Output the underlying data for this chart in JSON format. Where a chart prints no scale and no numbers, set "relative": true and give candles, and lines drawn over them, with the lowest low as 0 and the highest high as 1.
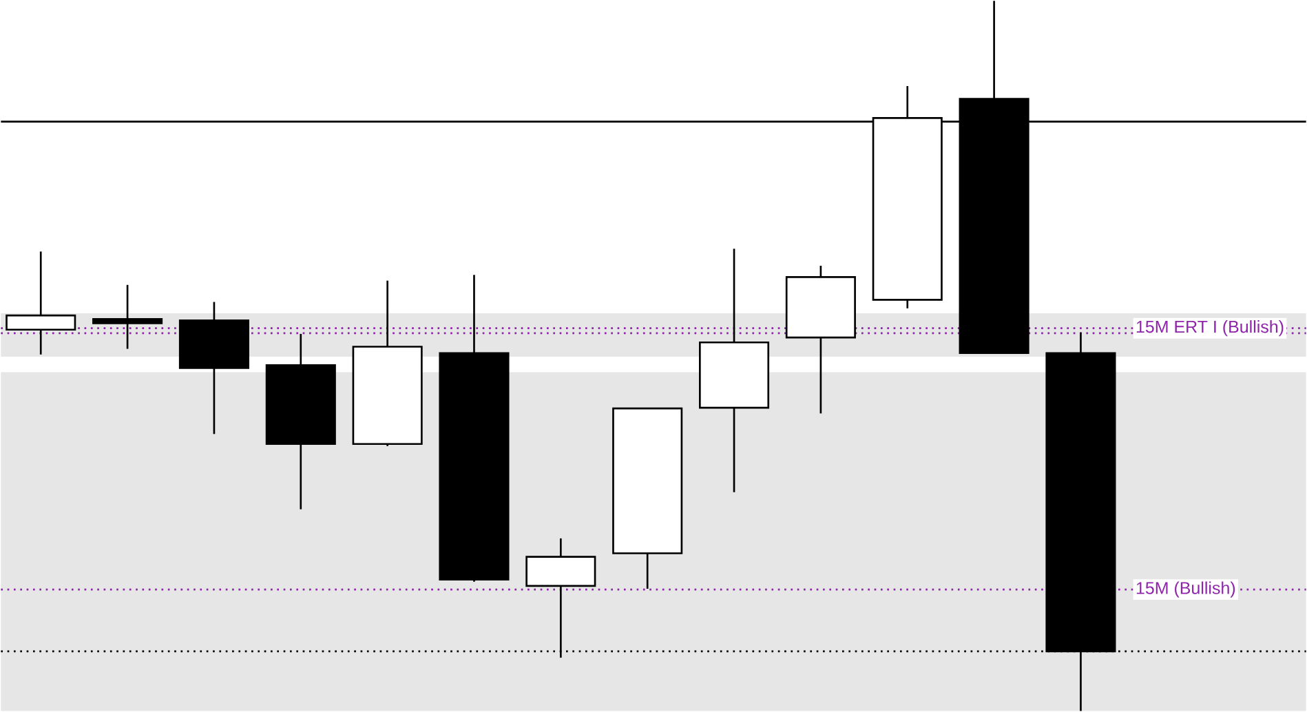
{
  "chart_data": {
    "type": "candlestick",
    "relative": true,
    "categories": [
      null,
      null,
      null,
      null,
      null,
      null,
      null,
      null,
      null,
      null,
      null,
      null,
      null
    ],
    "ohlc": [
      [
        0.537,
        0.647,
        0.502,
        0.557
      ],
      [
        0.552,
        0.6,
        0.51,
        0.546
      ],
      [
        0.55,
        0.576,
        0.39,
        0.483
      ],
      [
        0.487,
        0.531,
        0.284,
        0.376
      ],
      [
        0.376,
        0.606,
        0.373,
        0.513
      ],
      [
        0.504,
        0.614,
        0.182,
        0.185
      ],
      [
        0.176,
        0.243,
        0.075,
        0.217
      ],
      [
        0.222,
        0.426,
        0.172,
        0.426
      ],
      [
        0.427,
        0.651,
        0.308,
        0.519
      ],
      [
        0.526,
        0.627,
        0.419,
        0.611
      ],
      [
        0.579,
        0.88,
        0.567,
        0.835
      ],
      [
        0.862,
        1.0,
        0.504,
        0.504
      ],
      [
        0.504,
        0.533,
        0.0,
        0.084
      ]
    ],
    "bands": [
      {
        "axis": "y",
        "from": 0.499,
        "to": 0.56,
        "color": "#e6e6e6"
      },
      {
        "axis": "y",
        "from": 0.0,
        "to": 0.477,
        "color": "#e6e6e6"
      }
    ],
    "ref_lines": [
      {
        "axis": "y",
        "value": 0.83,
        "color": "#000000",
        "line_style": "solid"
      },
      {
        "axis": "y",
        "value": 0.539,
        "color": "#8e24aa",
        "line_style": "dotted",
        "label": "15M ERT I (Bullish)"
      },
      {
        "axis": "y",
        "value": 0.532,
        "color": "#8e24aa",
        "line_style": "dotted"
      },
      {
        "axis": "y",
        "value": 0.171,
        "color": "#8e24aa",
        "line_style": "dotted",
        "label": "15M (Bullish)"
      },
      {
        "axis": "y",
        "value": 0.084,
        "color": "#000000",
        "line_style": "dotted"
      }
    ]
  }
}
